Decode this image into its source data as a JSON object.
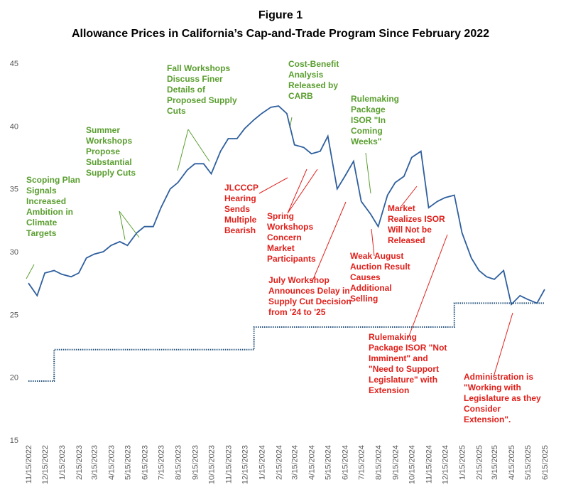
{
  "chart_data": {
    "type": "line",
    "title": "Figure 1",
    "subtitle": "Allowance Prices in California’s Cap-and-Trade Program Since February 2022",
    "x": [
      "11/15/2022",
      "12/1/2022",
      "12/15/2022",
      "1/1/2023",
      "1/15/2023",
      "2/1/2023",
      "2/15/2023",
      "3/1/2023",
      "3/15/2023",
      "4/1/2023",
      "4/15/2023",
      "5/1/2023",
      "5/15/2023",
      "6/1/2023",
      "6/15/2023",
      "7/1/2023",
      "7/15/2023",
      "8/1/2023",
      "8/15/2023",
      "9/1/2023",
      "9/15/2023",
      "10/1/2023",
      "10/15/2023",
      "11/1/2023",
      "11/15/2023",
      "12/1/2023",
      "12/15/2023",
      "1/1/2024",
      "1/15/2024",
      "2/1/2024",
      "2/15/2024",
      "3/1/2024",
      "3/15/2024",
      "4/1/2024",
      "4/15/2024",
      "5/1/2024",
      "5/15/2024",
      "6/1/2024",
      "6/15/2024",
      "7/1/2024",
      "7/15/2024",
      "8/1/2024",
      "8/15/2024",
      "9/1/2024",
      "9/15/2024",
      "10/1/2024",
      "10/15/2024",
      "11/1/2024",
      "11/15/2024",
      "12/1/2024",
      "12/15/2024",
      "1/1/2025",
      "1/15/2025",
      "2/1/2025",
      "2/15/2025",
      "3/1/2025",
      "3/15/2025",
      "4/1/2025",
      "4/15/2025",
      "5/1/2025",
      "5/15/2025",
      "6/1/2025",
      "6/15/2025"
    ],
    "series": [
      {
        "color": "#2f5f9e",
        "style": "solid",
        "values": [
          27.5,
          26.5,
          28.3,
          28.5,
          28.2,
          28.0,
          28.3,
          29.5,
          29.8,
          30.0,
          30.5,
          30.8,
          30.5,
          31.5,
          32.0,
          32.0,
          33.5,
          35.0,
          35.5,
          36.5,
          37.0,
          37.0,
          36.2,
          38.0,
          39.0,
          39.0,
          39.8,
          40.5,
          41.0,
          41.5,
          41.6,
          41.0,
          38.5,
          38.3,
          37.8,
          38.0,
          39.2,
          35.0,
          36.0,
          37.2,
          34.0,
          33.0,
          32.0,
          34.5,
          35.5,
          36.0,
          37.5,
          38.0,
          33.5,
          34.0,
          34.3,
          34.5,
          31.5,
          29.5,
          28.5,
          28.0,
          27.8,
          28.5,
          25.8,
          26.5,
          26.2,
          25.9,
          27.0
        ]
      },
      {
        "color": "#1f4e79",
        "style": "dotted",
        "values": [
          19.7,
          19.7,
          19.7,
          22.2,
          22.2,
          22.2,
          22.2,
          22.2,
          22.2,
          22.2,
          22.2,
          22.2,
          22.2,
          22.2,
          22.2,
          22.2,
          22.2,
          22.2,
          22.2,
          22.2,
          22.2,
          22.2,
          22.2,
          22.2,
          22.2,
          22.2,
          22.2,
          24.0,
          24.0,
          24.0,
          24.0,
          24.0,
          24.0,
          24.0,
          24.0,
          24.0,
          24.0,
          24.0,
          24.0,
          24.0,
          24.0,
          24.0,
          24.0,
          24.0,
          24.0,
          24.0,
          24.0,
          24.0,
          24.0,
          24.0,
          24.0,
          25.9,
          25.9,
          25.9,
          25.9,
          25.9,
          25.9,
          25.9,
          25.9,
          25.9,
          25.9,
          25.9,
          25.9
        ]
      }
    ],
    "xticks": [
      "11/15/2022",
      "12/15/2022",
      "1/15/2023",
      "2/15/2023",
      "3/15/2023",
      "4/15/2023",
      "5/15/2023",
      "6/15/2023",
      "7/15/2023",
      "8/15/2023",
      "9/15/2023",
      "10/15/2023",
      "11/15/2023",
      "12/15/2023",
      "1/15/2024",
      "2/15/2024",
      "3/15/2024",
      "4/15/2024",
      "5/15/2024",
      "6/15/2024",
      "7/15/2024",
      "8/15/2024",
      "9/15/2024",
      "10/15/2024",
      "11/15/2024",
      "12/15/2024",
      "1/15/2025",
      "2/15/2025",
      "3/15/2025",
      "4/15/2025",
      "5/15/2025",
      "6/15/2025"
    ],
    "ylim": [
      15,
      45
    ],
    "yticks": [
      15,
      20,
      25,
      30,
      35,
      40,
      45
    ],
    "annotations": [
      {
        "color": "#5a9e2f",
        "lines": [
          "Scoping Plan",
          "Signals",
          "Increased",
          "Ambition in",
          "Climate",
          "Targets"
        ]
      },
      {
        "color": "#5a9e2f",
        "lines": [
          "Summer",
          "Workshops",
          "Propose",
          "Substantial",
          "Supply Cuts"
        ]
      },
      {
        "color": "#5a9e2f",
        "lines": [
          "Fall Workshops",
          "Discuss Finer",
          "Details of",
          "Proposed Supply",
          "Cuts"
        ]
      },
      {
        "color": "#5a9e2f",
        "lines": [
          "Cost-Benefit",
          "Analysis",
          "Released by",
          "CARB"
        ]
      },
      {
        "color": "#5a9e2f",
        "lines": [
          "Rulemaking",
          "Package",
          "ISOR \"In",
          "Coming",
          "Weeks\""
        ]
      },
      {
        "color": "#e0201b",
        "lines": [
          "JLCCCP",
          "Hearing",
          "Sends",
          "Multiple",
          "Bearish"
        ]
      },
      {
        "color": "#e0201b",
        "lines": [
          "Spring",
          "Workshops",
          "Concern",
          "Market",
          "Participants"
        ]
      },
      {
        "color": "#e0201b",
        "lines": [
          "July Workshop",
          "Announces Delay in",
          "Supply Cut Decision",
          "from '24 to '25"
        ]
      },
      {
        "color": "#e0201b",
        "lines": [
          "Weak August",
          "Auction Result",
          "Causes",
          "Additional",
          "Selling"
        ]
      },
      {
        "color": "#e0201b",
        "lines": [
          "Market",
          "Realizes ISOR",
          "Will Not be",
          "Released"
        ]
      },
      {
        "color": "#e0201b",
        "lines": [
          "Rulemaking",
          "Package ISOR \"Not",
          "Imminent\" and",
          "\"Need to Support",
          "Legislature\" with",
          "Extension"
        ]
      },
      {
        "color": "#e0201b",
        "lines": [
          "Administration is",
          "\"Working with",
          "Legislature as they",
          "Consider",
          "Extension\"."
        ]
      }
    ]
  }
}
